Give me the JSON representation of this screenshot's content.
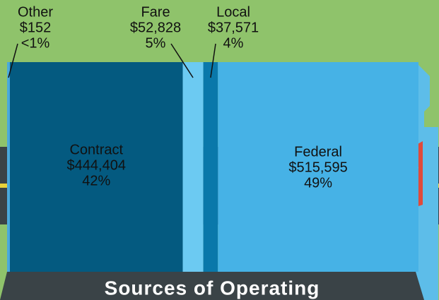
{
  "chart_data": {
    "type": "share-block",
    "title": "Sources of Operating",
    "series": [
      {
        "name": "Other",
        "color": "#4aa9dc",
        "value": 152,
        "value_label": "$152",
        "share_label": "<1%"
      },
      {
        "name": "Contract",
        "color": "#045a80",
        "value": 444404,
        "value_label": "$444,404",
        "share_label": "42%"
      },
      {
        "name": "Fare",
        "color": "#6ccaf2",
        "value": 52828,
        "value_label": "$52,828",
        "share_label": "5%"
      },
      {
        "name": "Local",
        "color": "#0a78aa",
        "value": 37571,
        "value_label": "$37,571",
        "share_label": "4%"
      },
      {
        "name": "Federal",
        "color": "#46b2e6",
        "value": 515595,
        "value_label": "$515,595",
        "share_label": "49%"
      }
    ]
  }
}
